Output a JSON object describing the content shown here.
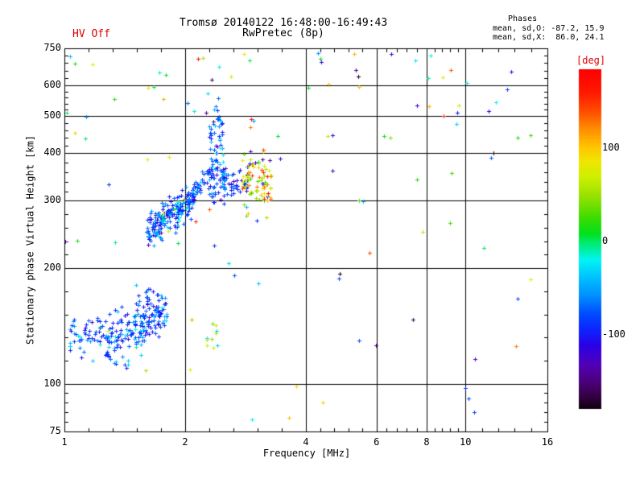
{
  "header": {
    "hv_status": "HV Off"
  },
  "colors": {
    "annotation_red": "#e00000",
    "axis": "#000000",
    "background": "#ffffff",
    "dominant_point_blue": "#0a32f0",
    "x_mode_yellow": "#e6e600"
  },
  "chart_data": {
    "type": "scatter",
    "title": "Tromsø 20140122 16:48:00-16:49:43",
    "subtitle": "RwPretec (8p)",
    "stats": {
      "heading": "Phases",
      "o_line": "mean, sd,O: -87.2, 15.9",
      "x_line": "mean, sd,X:  86.0, 24.1",
      "o_mean": -87.2,
      "o_sd": 15.9,
      "x_mean": 86.0,
      "x_sd": 24.1
    },
    "xlabel": "Frequency [MHz]",
    "ylabel": "Stationary phase Virtual Height [km]",
    "x_scale": "log",
    "y_scale": "log",
    "xlim": [
      1,
      16
    ],
    "ylim": [
      75,
      750
    ],
    "x_ticks": [
      1,
      2,
      4,
      6,
      8,
      10,
      16
    ],
    "y_ticks": [
      75,
      100,
      200,
      300,
      400,
      500,
      600,
      750
    ],
    "grid_x": [
      2,
      4,
      6,
      8,
      10
    ],
    "grid_y": [
      100,
      200,
      300,
      400,
      500,
      600
    ],
    "minor_per_interval": 4,
    "grid_on": true,
    "marker": "plus",
    "legend_position": "right-colorbar",
    "colorbar": {
      "label": "[deg]",
      "ticks": [
        100,
        0,
        -100
      ],
      "deg_top": 185,
      "deg_bottom": -180,
      "gradient_stops": [
        [
          185,
          "#ff0000"
        ],
        [
          160,
          "#ff1900"
        ],
        [
          140,
          "#ff4d00"
        ],
        [
          120,
          "#ff9100"
        ],
        [
          100,
          "#ffc800"
        ],
        [
          86,
          "#efe600"
        ],
        [
          70,
          "#d0f000"
        ],
        [
          48,
          "#96e100"
        ],
        [
          25,
          "#3cdc00"
        ],
        [
          8,
          "#00e11e"
        ],
        [
          0,
          "#00e964"
        ],
        [
          -10,
          "#00f0aa"
        ],
        [
          -20,
          "#00f5f5"
        ],
        [
          -38,
          "#00c3ff"
        ],
        [
          -58,
          "#0091ff"
        ],
        [
          -78,
          "#004bff"
        ],
        [
          -96,
          "#0f23ff"
        ],
        [
          -112,
          "#2a00e6"
        ],
        [
          -132,
          "#5000b9"
        ],
        [
          -152,
          "#4b0078"
        ],
        [
          -168,
          "#320041"
        ],
        [
          -180,
          "#0f000f"
        ]
      ]
    },
    "seed": 42,
    "clusters": [
      {
        "name": "E-region-left",
        "n": 45,
        "f": [
          1.02,
          1.28
        ],
        "h": [
          127,
          147
        ],
        "h_sd": 5,
        "h_scatter": true,
        "phases": [
          [
            0.6,
            -100,
            -70
          ],
          [
            0.25,
            -65,
            -35
          ],
          [
            0.1,
            -125,
            -102
          ],
          [
            0.05,
            -30,
            -10
          ]
        ]
      },
      {
        "name": "E-region-main",
        "n": 170,
        "f": [
          1.25,
          1.8
        ],
        "h": [
          130,
          152
        ],
        "h_sd": 9,
        "h_scatter": false,
        "phases": [
          [
            0.62,
            -105,
            -65
          ],
          [
            0.22,
            -60,
            -28
          ],
          [
            0.09,
            -132,
            -107
          ],
          [
            0.05,
            -25,
            0
          ],
          [
            0.02,
            60,
            130
          ]
        ]
      },
      {
        "name": "E-region-top",
        "n": 30,
        "f": [
          1.48,
          1.78
        ],
        "h": [
          150,
          178
        ],
        "h_sd": 7,
        "h_scatter": true,
        "phases": [
          [
            0.7,
            -105,
            -65
          ],
          [
            0.3,
            -60,
            -30
          ]
        ]
      },
      {
        "name": "E-region-low",
        "n": 12,
        "f": [
          1.05,
          1.5
        ],
        "h": [
          106,
          124
        ],
        "h_sd": 0,
        "h_scatter": true,
        "phases": [
          [
            0.8,
            -105,
            -60
          ],
          [
            0.2,
            -60,
            -30
          ]
        ]
      },
      {
        "name": "F-knee-dense",
        "n": 215,
        "f": [
          1.6,
          2.1
        ],
        "h": [
          248,
          302
        ],
        "h_sd": 13,
        "h_scatter": false,
        "phases": [
          [
            0.66,
            -110,
            -62
          ],
          [
            0.18,
            -58,
            -26
          ],
          [
            0.1,
            -140,
            -112
          ],
          [
            0.04,
            -24,
            -5
          ],
          [
            0.02,
            30,
            140
          ]
        ]
      },
      {
        "name": "F-arm",
        "n": 55,
        "f": [
          2.02,
          2.35
        ],
        "h": [
          298,
          368
        ],
        "h_sd": 9,
        "h_scatter": false,
        "phases": [
          [
            0.7,
            -108,
            -62
          ],
          [
            0.2,
            -58,
            -26
          ],
          [
            0.1,
            -140,
            -110
          ]
        ]
      },
      {
        "name": "F-vertical-1",
        "n": 50,
        "f": [
          2.28,
          2.52
        ],
        "h": [
          295,
          390
        ],
        "h_sd": 0,
        "h_scatter": true,
        "phases": [
          [
            0.55,
            -105,
            -60
          ],
          [
            0.3,
            -58,
            -22
          ],
          [
            0.15,
            -140,
            -108
          ]
        ]
      },
      {
        "name": "F-vertical-2",
        "n": 28,
        "f": [
          2.29,
          2.5
        ],
        "h": [
          385,
          480
        ],
        "h_sd": 0,
        "h_scatter": true,
        "phases": [
          [
            0.55,
            -105,
            -60
          ],
          [
            0.35,
            -58,
            -22
          ],
          [
            0.1,
            -140,
            -108
          ]
        ]
      },
      {
        "name": "F-vertical-top",
        "n": 10,
        "f": [
          2.3,
          2.46
        ],
        "h": [
          470,
          565
        ],
        "h_sd": 0,
        "h_scatter": true,
        "phases": [
          [
            0.6,
            -100,
            -55
          ],
          [
            0.4,
            -55,
            -25
          ]
        ]
      },
      {
        "name": "O-side-blob",
        "n": 50,
        "f": [
          2.44,
          2.86
        ],
        "h": [
          315,
          358
        ],
        "h_sd": 8,
        "h_scatter": true,
        "phases": [
          [
            0.6,
            -112,
            -70
          ],
          [
            0.2,
            -140,
            -113
          ],
          [
            0.2,
            -65,
            -30
          ]
        ]
      },
      {
        "name": "X-mode-patch",
        "n": 85,
        "f": [
          2.77,
          3.28
        ],
        "h": [
          298,
          378
        ],
        "h_sd": 18,
        "h_scatter": true,
        "phases": [
          [
            0.28,
            72,
            105
          ],
          [
            0.24,
            42,
            72
          ],
          [
            0.18,
            14,
            42
          ],
          [
            0.15,
            105,
            135
          ],
          [
            0.06,
            135,
            165
          ],
          [
            0.05,
            -120,
            -60
          ],
          [
            0.04,
            -170,
            -130
          ]
        ]
      },
      {
        "name": "sporadic-green",
        "n": 10,
        "f": [
          2.25,
          2.42
        ],
        "h": [
          124,
          158
        ],
        "h_sd": 0,
        "h_scatter": true,
        "phases": [
          [
            0.6,
            30,
            85
          ],
          [
            0.4,
            -70,
            -25
          ]
        ]
      },
      {
        "name": "background-scatter",
        "n": 112,
        "f": [
          1.0,
          15.5
        ],
        "h": [
          78,
          730
        ],
        "h_sd": 0,
        "h_scatter": true,
        "phases": [
          [
            0.36,
            -130,
            -25
          ],
          [
            0.2,
            18,
            110
          ],
          [
            0.16,
            100,
            178
          ],
          [
            0.12,
            -180,
            -122
          ],
          [
            0.16,
            -25,
            18
          ]
        ]
      }
    ]
  }
}
